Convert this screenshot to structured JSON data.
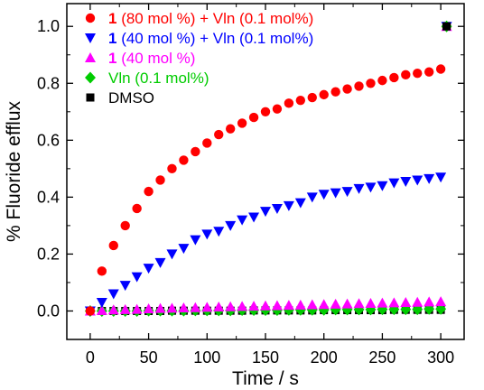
{
  "chart_data": {
    "type": "scatter",
    "xlabel": "Time / s",
    "ylabel": "% Fluoride efflux",
    "xlim": [
      -20,
      320
    ],
    "ylim": [
      -0.1,
      1.08
    ],
    "xticks": [
      0,
      50,
      100,
      150,
      200,
      250,
      300
    ],
    "yticks": [
      0.0,
      0.2,
      0.4,
      0.6,
      0.8,
      1.0
    ],
    "xtick_labels": [
      "0",
      "50",
      "100",
      "150",
      "200",
      "250",
      "300"
    ],
    "ytick_labels": [
      "0.0",
      "0.2",
      "0.4",
      "0.6",
      "0.8",
      "1.0"
    ],
    "grid": false,
    "legend_position": "top-left",
    "series": [
      {
        "name": "1 (80 mol %) + Vln (0.1 mol%)",
        "label_bold": "1",
        "label_rest": " (80 mol %) + Vln (0.1 mol%)",
        "marker": "circle",
        "color": "#ff0000",
        "x": [
          0,
          10,
          20,
          30,
          40,
          50,
          60,
          70,
          80,
          90,
          100,
          110,
          120,
          130,
          140,
          150,
          160,
          170,
          180,
          190,
          200,
          210,
          220,
          230,
          240,
          250,
          260,
          270,
          280,
          290,
          300
        ],
        "y": [
          0.0,
          0.14,
          0.23,
          0.3,
          0.36,
          0.42,
          0.46,
          0.5,
          0.53,
          0.56,
          0.59,
          0.62,
          0.64,
          0.66,
          0.68,
          0.7,
          0.71,
          0.73,
          0.74,
          0.75,
          0.76,
          0.77,
          0.78,
          0.79,
          0.8,
          0.81,
          0.82,
          0.83,
          0.835,
          0.84,
          0.85
        ]
      },
      {
        "name": "1 (40 mol %) + Vln (0.1 mol%)",
        "label_bold": "1",
        "label_rest": " (40 mol %) + Vln (0.1 mol%)",
        "marker": "triangle-down",
        "color": "#0000ff",
        "x": [
          0,
          10,
          20,
          30,
          40,
          50,
          60,
          70,
          80,
          90,
          100,
          110,
          120,
          130,
          140,
          150,
          160,
          170,
          180,
          190,
          200,
          210,
          220,
          230,
          240,
          250,
          260,
          270,
          280,
          290,
          300
        ],
        "y": [
          0.0,
          0.03,
          0.06,
          0.09,
          0.12,
          0.15,
          0.17,
          0.2,
          0.22,
          0.25,
          0.27,
          0.28,
          0.3,
          0.32,
          0.33,
          0.35,
          0.36,
          0.37,
          0.38,
          0.4,
          0.41,
          0.415,
          0.42,
          0.43,
          0.435,
          0.44,
          0.45,
          0.455,
          0.46,
          0.465,
          0.47
        ]
      },
      {
        "name": "1 (40 mol %)",
        "label_bold": "1",
        "label_rest": " (40 mol %)",
        "marker": "triangle-up",
        "color": "#ff00ff",
        "x": [
          0,
          10,
          20,
          30,
          40,
          50,
          60,
          70,
          80,
          90,
          100,
          110,
          120,
          130,
          140,
          150,
          160,
          170,
          180,
          190,
          200,
          210,
          220,
          230,
          240,
          250,
          260,
          270,
          280,
          290,
          300
        ],
        "y": [
          0.0,
          0.002,
          0.004,
          0.005,
          0.006,
          0.008,
          0.009,
          0.01,
          0.011,
          0.012,
          0.013,
          0.014,
          0.015,
          0.016,
          0.017,
          0.018,
          0.019,
          0.02,
          0.021,
          0.022,
          0.023,
          0.024,
          0.025,
          0.026,
          0.027,
          0.028,
          0.029,
          0.03,
          0.031,
          0.032,
          0.033
        ]
      },
      {
        "name": "Vln (0.1 mol%)",
        "label_bold": "",
        "label_rest": "Vln (0.1 mol%)",
        "marker": "diamond",
        "color": "#00cc00",
        "x": [
          0,
          10,
          20,
          30,
          40,
          50,
          60,
          70,
          80,
          90,
          100,
          110,
          120,
          130,
          140,
          150,
          160,
          170,
          180,
          190,
          200,
          210,
          220,
          230,
          240,
          250,
          260,
          270,
          280,
          290,
          300
        ],
        "y": [
          0.0,
          0.0,
          0.0,
          0.0,
          0.0,
          0.001,
          0.001,
          0.001,
          0.001,
          0.002,
          0.002,
          0.002,
          0.002,
          0.003,
          0.003,
          0.003,
          0.003,
          0.004,
          0.004,
          0.004,
          0.004,
          0.005,
          0.005,
          0.005,
          0.005,
          0.006,
          0.006,
          0.006,
          0.006,
          0.007,
          0.007
        ]
      },
      {
        "name": "DMSO",
        "label_bold": "",
        "label_rest": "DMSO",
        "marker": "square",
        "color": "#000000",
        "x": [
          0,
          10,
          20,
          30,
          40,
          50,
          60,
          70,
          80,
          90,
          100,
          110,
          120,
          130,
          140,
          150,
          160,
          170,
          180,
          190,
          200,
          210,
          220,
          230,
          240,
          250,
          260,
          270,
          280,
          290,
          300
        ],
        "y": [
          0.0,
          0.0,
          0.0,
          0.0,
          0.0,
          0.0,
          0.0,
          0.001,
          0.001,
          0.001,
          0.001,
          0.001,
          0.001,
          0.001,
          0.002,
          0.002,
          0.002,
          0.002,
          0.002,
          0.002,
          0.003,
          0.003,
          0.003,
          0.003,
          0.003,
          0.003,
          0.004,
          0.004,
          0.004,
          0.004,
          0.004
        ]
      }
    ],
    "endpoint": {
      "x": 305,
      "y": 1.0,
      "markers": [
        "circle",
        "triangle-down",
        "triangle-up",
        "diamond",
        "square"
      ]
    }
  }
}
